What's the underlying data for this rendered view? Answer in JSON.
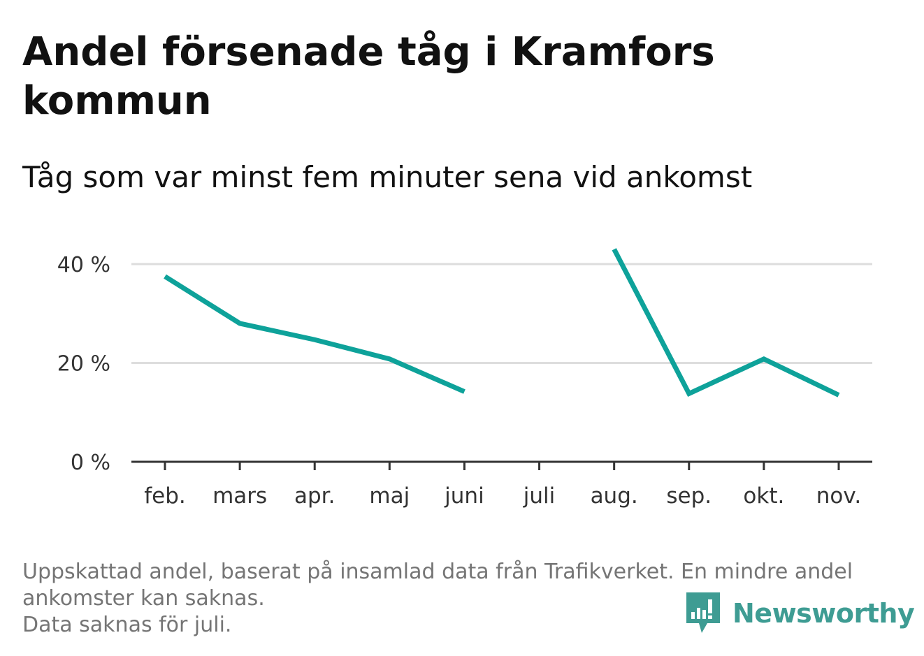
{
  "title": "Andel försenade tåg i Kramfors kommun",
  "subtitle": "Tåg som var minst fem minuter sena vid ankomst",
  "footnote": {
    "line1": "Uppskattad andel, baserat på insamlad data från Trafikverket. En mindre andel",
    "line2": "ankomster kan saknas.",
    "line3": "Data saknas för juli."
  },
  "brand": {
    "name": "Newsworthy",
    "color": "#3e9c93",
    "icon": "newsworthy-logo-icon"
  },
  "colors": {
    "line": "#0ea29a",
    "grid": "#dddddd",
    "axis": "#333333"
  },
  "chart_data": {
    "type": "line",
    "categories": [
      "feb.",
      "mars",
      "apr.",
      "maj",
      "juni",
      "juli",
      "aug.",
      "sep.",
      "okt.",
      "nov."
    ],
    "series": [
      {
        "values": [
          37.5,
          28,
          24.7,
          20.8,
          14.2,
          null,
          43,
          13.8,
          20.8,
          13.5
        ]
      }
    ],
    "y_ticks": [
      {
        "value": 0,
        "label": "0 %"
      },
      {
        "value": 20,
        "label": "20 %"
      },
      {
        "value": 40,
        "label": "40 %"
      }
    ],
    "ylim": [
      0,
      45
    ],
    "grid": true,
    "xlabel": "",
    "ylabel": ""
  }
}
